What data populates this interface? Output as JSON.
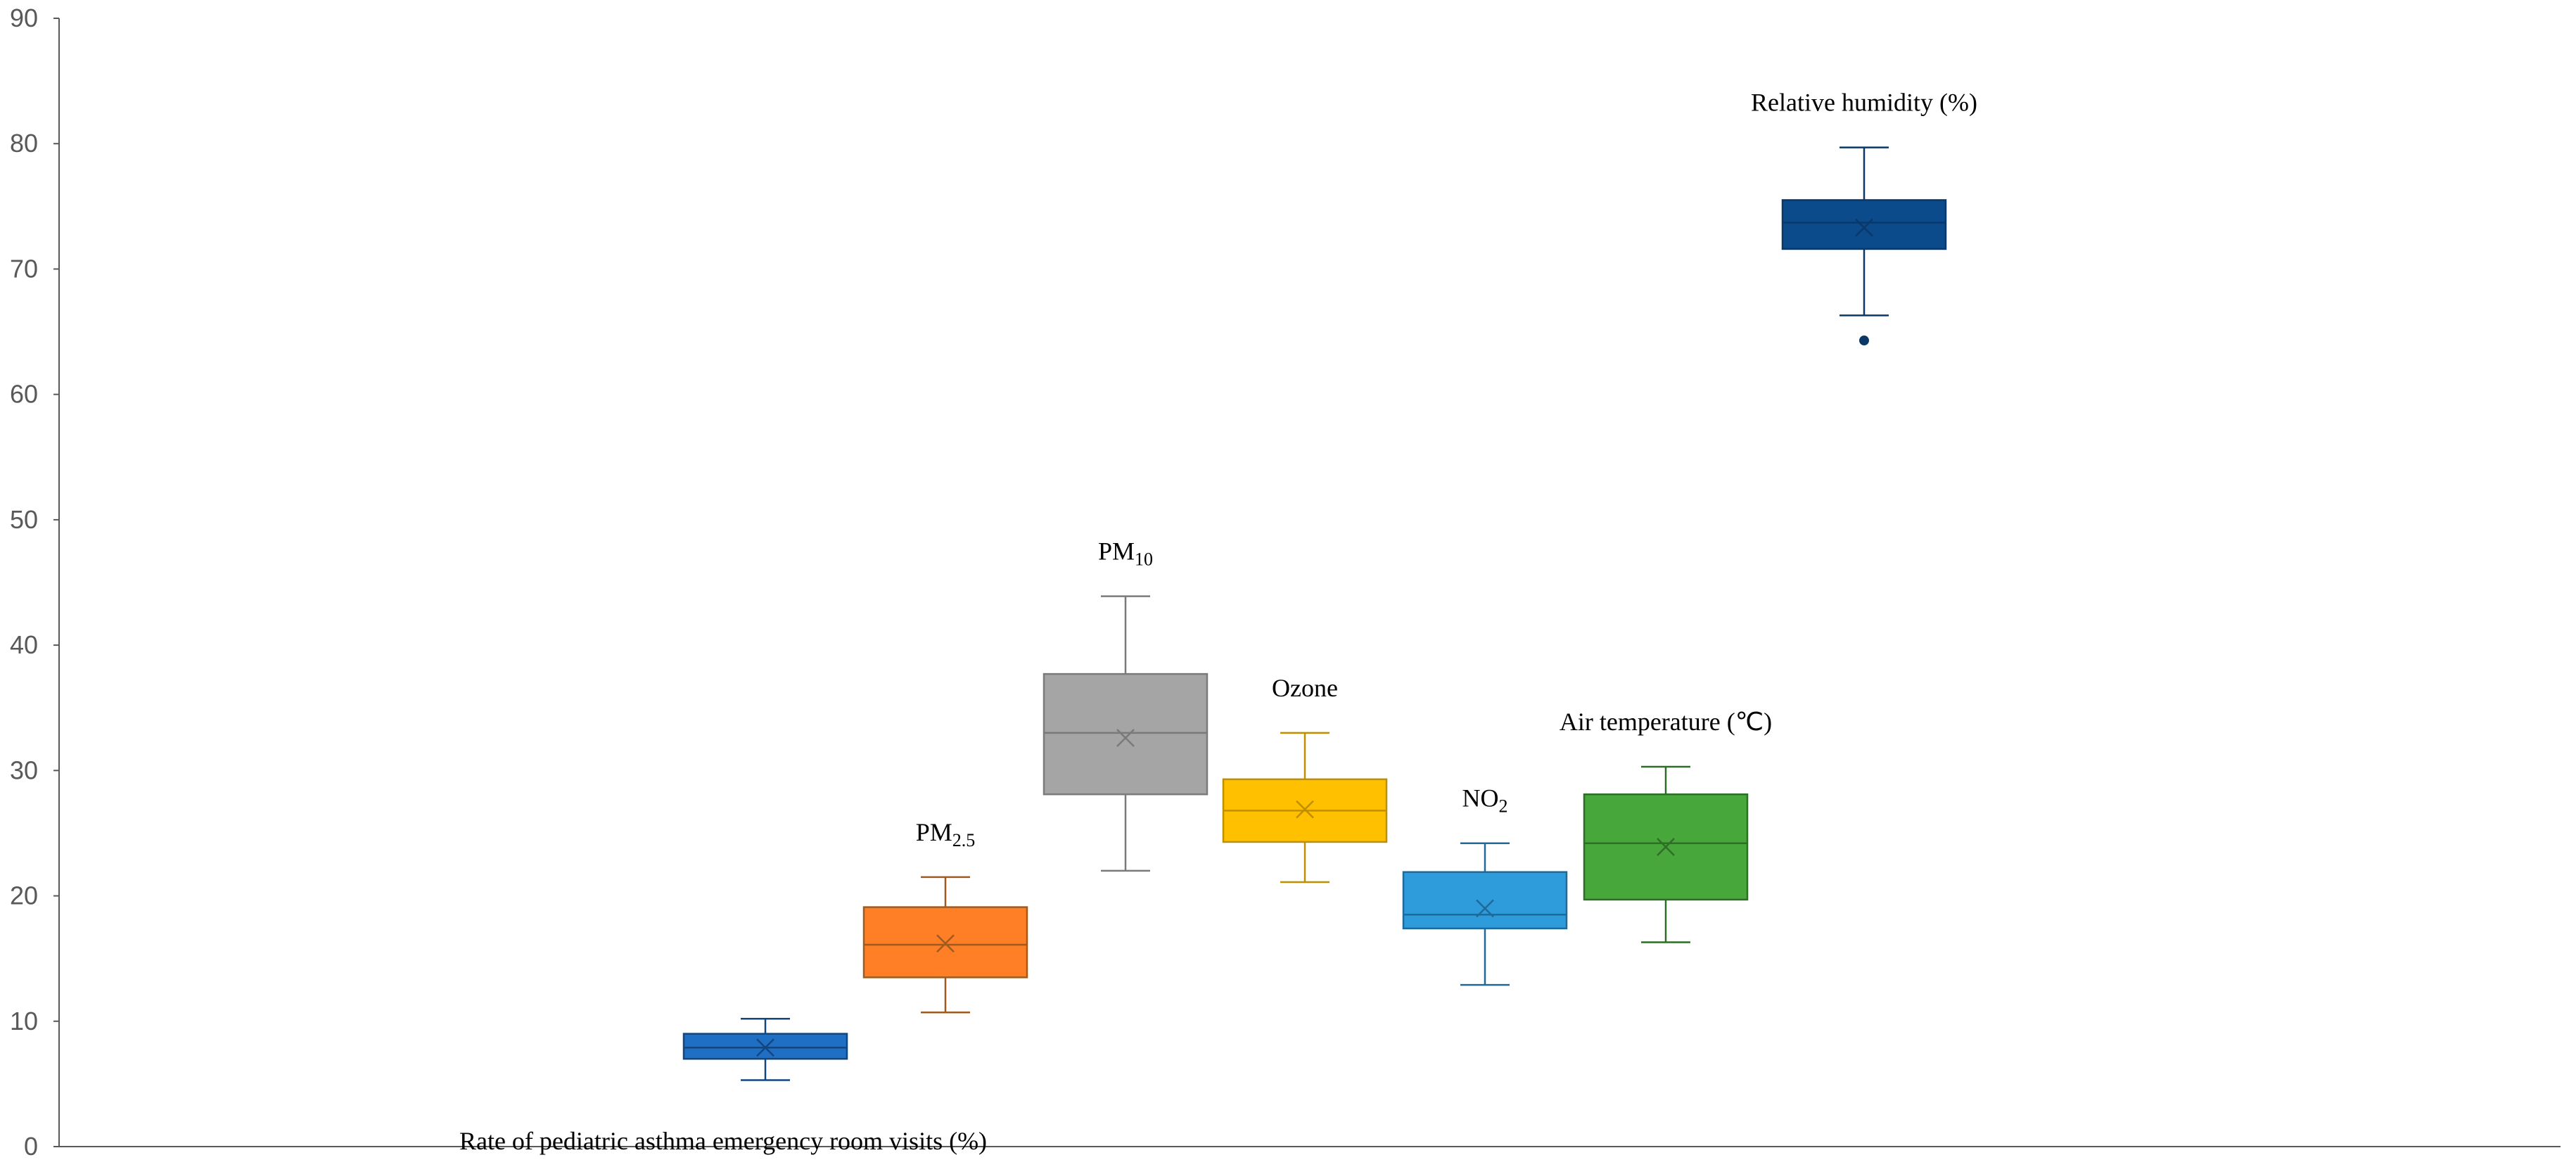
{
  "chart_data": {
    "type": "box",
    "title": "",
    "xlabel": "",
    "ylabel": "",
    "ylim": [
      0,
      90
    ],
    "yticks": [
      0,
      10,
      20,
      30,
      40,
      50,
      60,
      70,
      80,
      90
    ],
    "grid": false,
    "series": [
      {
        "name": "Rate of pediatric asthma emergency room visits (%)",
        "label_text": "Rate of pediatric asthma emergency room visits (%)",
        "label_sub": "",
        "label_suffix": "",
        "min": 5.3,
        "q1": 7.0,
        "median": 7.9,
        "q3": 9.0,
        "max": 10.2,
        "mean": 7.9,
        "outliers": [],
        "color": "#1F6FC5",
        "dark": "#12467f",
        "label_pos": "below"
      },
      {
        "name": "PM2.5",
        "label_text": "PM",
        "label_sub": "2.5",
        "label_suffix": "",
        "min": 10.7,
        "q1": 13.5,
        "median": 16.1,
        "q3": 19.1,
        "max": 21.5,
        "mean": 16.2,
        "outliers": [],
        "color": "#FF7F27",
        "dark": "#9e5a1f",
        "label_pos": "above"
      },
      {
        "name": "PM10",
        "label_text": "PM",
        "label_sub": "10",
        "label_suffix": "",
        "min": 22.0,
        "q1": 28.1,
        "median": 33.0,
        "q3": 37.7,
        "max": 43.9,
        "mean": 32.6,
        "outliers": [],
        "color": "#A5A5A5",
        "dark": "#7a7a7a",
        "label_pos": "above"
      },
      {
        "name": "Ozone",
        "label_text": "Ozone",
        "label_sub": "",
        "label_suffix": "",
        "min": 21.1,
        "q1": 24.3,
        "median": 26.8,
        "q3": 29.3,
        "max": 33.0,
        "mean": 26.9,
        "outliers": [],
        "color": "#FFC000",
        "dark": "#c08f00",
        "label_pos": "above"
      },
      {
        "name": "NO2",
        "label_text": "NO",
        "label_sub": "2",
        "label_suffix": "",
        "min": 12.9,
        "q1": 17.4,
        "median": 18.5,
        "q3": 21.9,
        "max": 24.2,
        "mean": 19.0,
        "outliers": [],
        "color": "#2E9BDB",
        "dark": "#1f6a99",
        "label_pos": "above"
      },
      {
        "name": "Air temperature (℃)",
        "label_text": "Air temperature (℃)",
        "label_sub": "",
        "label_suffix": "",
        "min": 16.3,
        "q1": 19.7,
        "median": 24.2,
        "q3": 28.1,
        "max": 30.3,
        "mean": 23.9,
        "outliers": [],
        "color": "#48A73B",
        "dark": "#2f6e27",
        "label_pos": "above"
      },
      {
        "name": "Relative humidity (%)",
        "label_text": "Relative humidity (%)",
        "label_sub": "",
        "label_suffix": "",
        "min": 66.3,
        "q1": 71.6,
        "median": 73.7,
        "q3": 75.5,
        "max": 79.7,
        "mean": 73.3,
        "outliers": [
          64.3
        ],
        "color": "#0B4A8B",
        "dark": "#0b3866",
        "label_pos": "above"
      }
    ]
  }
}
